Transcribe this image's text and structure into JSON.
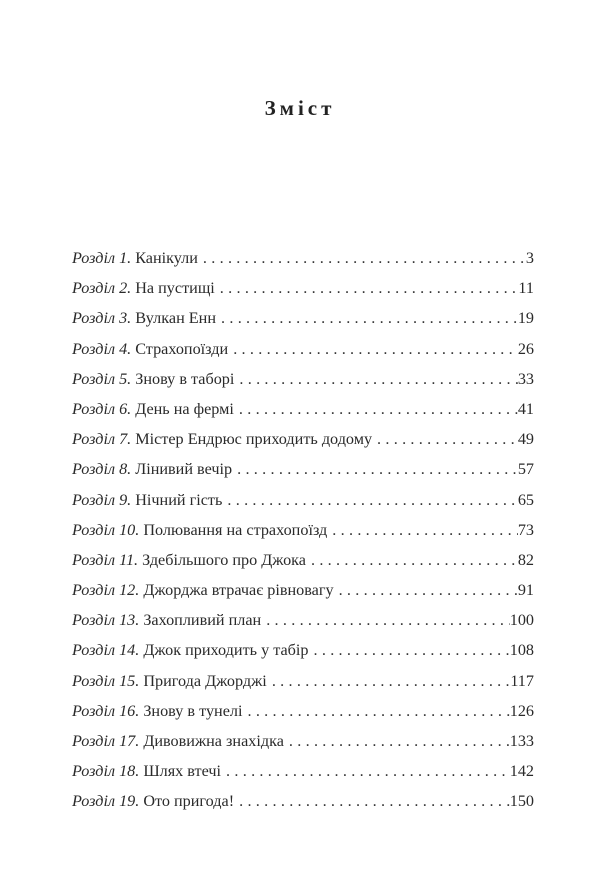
{
  "title": "Зміст",
  "entries": [
    {
      "label": "Розділ 1.",
      "title": "Канікули",
      "page": "3"
    },
    {
      "label": "Розділ 2.",
      "title": "На пустищі",
      "page": "11"
    },
    {
      "label": "Розділ 3.",
      "title": "Вулкан Енн",
      "page": "19"
    },
    {
      "label": "Розділ 4.",
      "title": "Страхопоїзди",
      "page": "26"
    },
    {
      "label": "Розділ 5.",
      "title": "Знову в таборі",
      "page": "33"
    },
    {
      "label": "Розділ 6.",
      "title": "День на фермі",
      "page": "41"
    },
    {
      "label": "Розділ 7.",
      "title": "Містер Ендрюс приходить додому",
      "page": "49"
    },
    {
      "label": "Розділ 8.",
      "title": "Лінивий вечір",
      "page": "57"
    },
    {
      "label": "Розділ 9.",
      "title": "Нічний гість",
      "page": "65"
    },
    {
      "label": "Розділ 10.",
      "title": "Полювання на страхопоїзд",
      "page": "73"
    },
    {
      "label": "Розділ 11.",
      "title": "Здебільшого про Джока",
      "page": "82"
    },
    {
      "label": "Розділ 12.",
      "title": "Джорджа втрачає рівновагу",
      "page": "91"
    },
    {
      "label": "Розділ 13.",
      "title": "Захопливий план",
      "page": "100"
    },
    {
      "label": "Розділ 14.",
      "title": "Джок приходить у табір",
      "page": "108"
    },
    {
      "label": "Розділ 15.",
      "title": "Пригода Джорджі",
      "page": "117"
    },
    {
      "label": "Розділ 16.",
      "title": "Знову в тунелі",
      "page": "126"
    },
    {
      "label": "Розділ 17.",
      "title": "Дивовижна знахідка",
      "page": "133"
    },
    {
      "label": "Розділ 18.",
      "title": "Шлях втечі",
      "page": "142"
    },
    {
      "label": "Розділ 19.",
      "title": "Ото пригода!",
      "page": "150"
    }
  ]
}
